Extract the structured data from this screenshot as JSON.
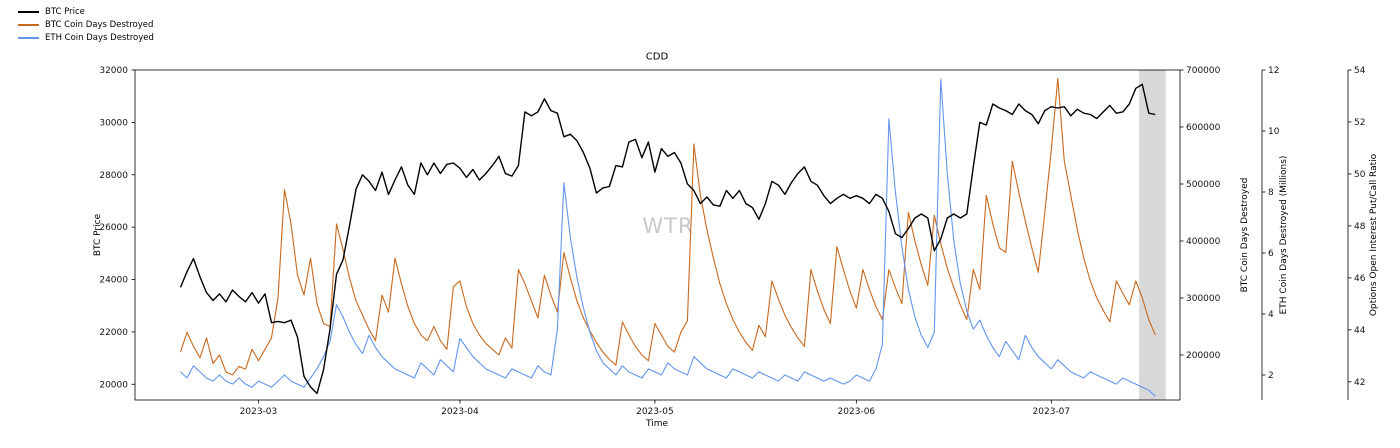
{
  "chart_data": {
    "type": "line",
    "title": "CDD",
    "xlabel": "Time",
    "watermark": "WTR",
    "grid": false,
    "legend_position": "upper-left-outside",
    "xlim": [
      0,
      160.8
    ],
    "x_start": 7,
    "x_step": 1,
    "x_ticks": [
      {
        "pos": 19,
        "label": "2023-03"
      },
      {
        "pos": 50,
        "label": "2023-04"
      },
      {
        "pos": 80,
        "label": "2023-05"
      },
      {
        "pos": 111,
        "label": "2023-06"
      },
      {
        "pos": 141,
        "label": "2023-07"
      }
    ],
    "highlight_band": {
      "x0": 154.5,
      "x1": 158.6,
      "color": "#d8d8d8"
    },
    "axes": {
      "btc_price": {
        "label": "BTC Price",
        "ticks": [
          20000,
          22000,
          24000,
          26000,
          28000,
          30000,
          32000
        ],
        "lim": [
          19400,
          32000
        ]
      },
      "btc_cdd": {
        "label": "BTC Coin Days Destroyed",
        "ticks": [
          200000,
          300000,
          400000,
          500000,
          600000,
          700000
        ],
        "lim": [
          121000,
          700000
        ]
      },
      "eth_cdd": {
        "label": "ETH Coin Days Destroyed (Millions)",
        "ticks": [
          2,
          4,
          6,
          8,
          10,
          12
        ],
        "lim": [
          1.18,
          12
        ]
      },
      "put_call": {
        "label": "Options Open Interest Put/Call Ratio",
        "ticks": [
          42,
          44,
          46,
          48,
          50,
          52,
          54
        ],
        "lim": [
          41.3,
          54
        ]
      }
    },
    "series": [
      {
        "name": "BTC Price",
        "slug": "btc-price",
        "color": "#000000",
        "axis": "btc_price",
        "width": 1.4,
        "y": [
          23700,
          24300,
          24800,
          24100,
          23500,
          23200,
          23450,
          23150,
          23600,
          23350,
          23150,
          23500,
          23100,
          23450,
          22350,
          22400,
          22350,
          22450,
          21800,
          20300,
          19900,
          19650,
          20550,
          22100,
          24200,
          24750,
          26050,
          27450,
          28000,
          27750,
          27400,
          28100,
          27250,
          27800,
          28300,
          27600,
          27250,
          28450,
          28000,
          28450,
          28050,
          28400,
          28450,
          28250,
          27900,
          28200,
          27800,
          28050,
          28350,
          28700,
          28050,
          27950,
          28350,
          30400,
          30250,
          30400,
          30900,
          30450,
          30350,
          29450,
          29550,
          29300,
          28850,
          28250,
          27300,
          27500,
          27550,
          28350,
          28300,
          29250,
          29350,
          28650,
          29250,
          28100,
          29000,
          28700,
          28850,
          28450,
          27650,
          27400,
          26900,
          27150,
          26850,
          26800,
          27400,
          27100,
          27400,
          26900,
          26750,
          26300,
          26900,
          27750,
          27600,
          27250,
          27700,
          28050,
          28300,
          27750,
          27600,
          27200,
          26900,
          27100,
          27250,
          27100,
          27200,
          27100,
          26900,
          27250,
          27100,
          26600,
          25750,
          25600,
          25950,
          26350,
          26500,
          26350,
          25100,
          25550,
          26350,
          26500,
          26350,
          26500,
          28300,
          30000,
          29900,
          30700,
          30550,
          30450,
          30300,
          30700,
          30450,
          30300,
          29950,
          30450,
          30600,
          30550,
          30600,
          30250,
          30500,
          30350,
          30300,
          30150,
          30400,
          30650,
          30350,
          30400,
          30700,
          31300,
          31450,
          30350,
          30300
        ]
      },
      {
        "name": "BTC Coin Days Destroyed",
        "slug": "btc-cdd",
        "color": "#c8691e",
        "axis": "btc_cdd",
        "width": 1.1,
        "y": [
          205000,
          240000,
          215000,
          195000,
          230000,
          185000,
          200000,
          170000,
          165000,
          180000,
          175000,
          210000,
          190000,
          210000,
          230000,
          300000,
          490000,
          430000,
          340000,
          305000,
          370000,
          290000,
          255000,
          250000,
          430000,
          385000,
          335000,
          295000,
          270000,
          245000,
          225000,
          305000,
          275000,
          370000,
          325000,
          285000,
          255000,
          235000,
          225000,
          250000,
          225000,
          210000,
          320000,
          330000,
          285000,
          255000,
          235000,
          220000,
          210000,
          200000,
          230000,
          212000,
          350000,
          325000,
          295000,
          265000,
          340000,
          305000,
          275000,
          380000,
          335000,
          295000,
          265000,
          242000,
          222000,
          205000,
          192000,
          182000,
          258000,
          235000,
          215000,
          200000,
          190000,
          255000,
          235000,
          215000,
          205000,
          240000,
          260000,
          570000,
          480000,
          420000,
          370000,
          325000,
          290000,
          262000,
          240000,
          222000,
          208000,
          252000,
          232000,
          330000,
          298000,
          270000,
          248000,
          230000,
          215000,
          350000,
          312000,
          280000,
          255000,
          390000,
          350000,
          312000,
          282000,
          350000,
          315000,
          285000,
          262000,
          350000,
          318000,
          290000,
          450000,
          400000,
          358000,
          322000,
          445000,
          395000,
          352000,
          318000,
          288000,
          262000,
          350000,
          315000,
          480000,
          430000,
          388000,
          380000,
          540000,
          485000,
          435000,
          388000,
          345000,
          450000,
          560000,
          685000,
          540000,
          480000,
          420000,
          370000,
          330000,
          300000,
          278000,
          258000,
          330000,
          308000,
          288000,
          330000,
          300000,
          262000,
          235000
        ]
      },
      {
        "name": "ETH Coin Days Destroyed",
        "slug": "eth-cdd",
        "color": "#6495ed",
        "axis": "eth_cdd",
        "width": 1.1,
        "y": [
          2.1,
          1.9,
          2.3,
          2.1,
          1.9,
          1.8,
          2.0,
          1.8,
          1.7,
          1.9,
          1.7,
          1.6,
          1.8,
          1.7,
          1.6,
          1.8,
          2.0,
          1.8,
          1.7,
          1.6,
          1.9,
          2.2,
          2.6,
          3.1,
          4.3,
          3.9,
          3.4,
          3.0,
          2.7,
          3.3,
          2.9,
          2.6,
          2.4,
          2.2,
          2.1,
          2.0,
          1.9,
          2.4,
          2.2,
          2.0,
          2.5,
          2.3,
          2.1,
          3.2,
          2.9,
          2.6,
          2.4,
          2.2,
          2.1,
          2.0,
          1.9,
          2.2,
          2.1,
          2.0,
          1.9,
          2.3,
          2.1,
          2.0,
          3.5,
          8.3,
          6.5,
          5.2,
          4.2,
          3.4,
          2.8,
          2.4,
          2.2,
          2.0,
          2.3,
          2.1,
          2.0,
          1.9,
          2.2,
          2.1,
          2.0,
          2.4,
          2.2,
          2.1,
          2.0,
          2.6,
          2.4,
          2.2,
          2.1,
          2.0,
          1.9,
          2.2,
          2.1,
          2.0,
          1.9,
          2.1,
          2.0,
          1.9,
          1.8,
          2.0,
          1.9,
          1.8,
          2.1,
          2.0,
          1.9,
          1.8,
          1.9,
          1.8,
          1.7,
          1.8,
          2.0,
          1.9,
          1.8,
          2.2,
          3.0,
          10.4,
          8.0,
          6.2,
          4.8,
          3.9,
          3.3,
          2.9,
          3.4,
          11.7,
          8.6,
          6.4,
          5.0,
          4.1,
          3.5,
          3.8,
          3.3,
          2.9,
          2.6,
          3.1,
          2.8,
          2.5,
          3.3,
          2.9,
          2.6,
          2.4,
          2.2,
          2.5,
          2.3,
          2.1,
          2.0,
          1.9,
          2.1,
          2.0,
          1.9,
          1.8,
          1.7,
          1.9,
          1.8,
          1.7,
          1.6,
          1.5,
          1.3
        ]
      }
    ],
    "legend": [
      "BTC Price",
      "BTC Coin Days Destroyed",
      "ETH Coin Days Destroyed"
    ]
  }
}
